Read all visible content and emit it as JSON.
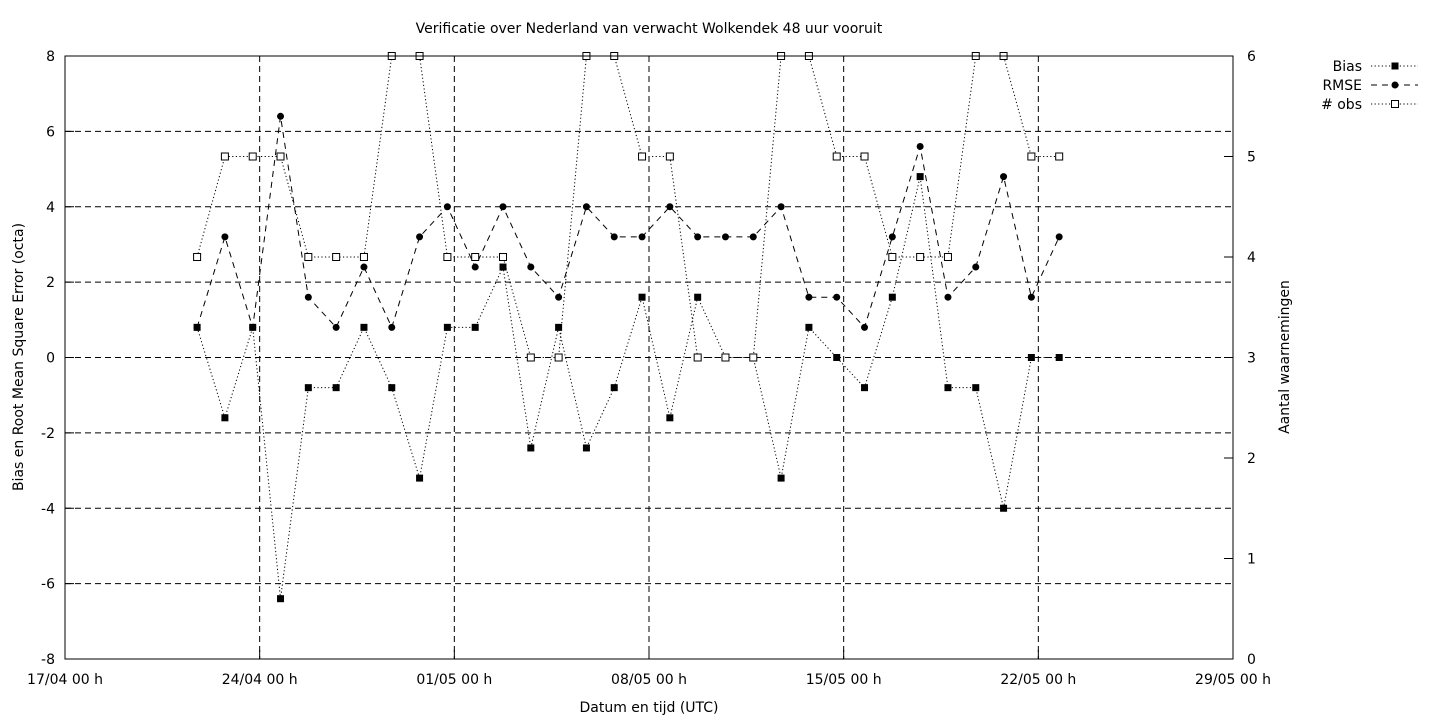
{
  "chart_data": {
    "type": "line",
    "title": "Verificatie over Nederland van verwacht Wolkendek 48 uur vooruit",
    "xlabel": "Datum en tijd (UTC)",
    "ylabel": "Bias en Root Mean Square Error (octa)",
    "y2label": "Aantal waarnemingen",
    "xlim": [
      0,
      42
    ],
    "ylim": [
      -8,
      8
    ],
    "y2lim": [
      0,
      6
    ],
    "xticks": [
      {
        "x": 0,
        "label": "17/04 00 h"
      },
      {
        "x": 7,
        "label": "24/04 00 h"
      },
      {
        "x": 14,
        "label": "01/05 00 h"
      },
      {
        "x": 21,
        "label": "08/05 00 h"
      },
      {
        "x": 28,
        "label": "15/05 00 h"
      },
      {
        "x": 35,
        "label": "22/05 00 h"
      },
      {
        "x": 42,
        "label": "29/05 00 h"
      }
    ],
    "yticks": [
      "-8",
      "-6",
      "-4",
      "-2",
      "0",
      "2",
      "4",
      "6",
      "8"
    ],
    "y2ticks": [
      "0",
      "1",
      "2",
      "3",
      "4",
      "5",
      "6"
    ],
    "grid": true,
    "legend_position": "outside-top-right",
    "x_days": [
      4.75,
      5.75,
      6.75,
      7.75,
      8.75,
      9.75,
      10.75,
      11.75,
      12.75,
      13.75,
      14.75,
      15.75,
      16.75,
      17.75,
      18.75,
      19.75,
      20.75,
      21.75,
      22.75,
      23.75,
      24.75,
      25.75,
      26.75,
      27.75,
      28.75,
      29.75,
      30.75,
      31.75,
      32.75,
      33.75,
      34.75,
      35.75
    ],
    "series": [
      {
        "name": "Bias",
        "axis": "y1",
        "marker": "filled-square",
        "dash": "dotted",
        "values": [
          0.8,
          -1.6,
          0.8,
          -6.4,
          -0.8,
          -0.8,
          0.8,
          -0.8,
          -3.2,
          0.8,
          0.8,
          2.4,
          -2.4,
          0.8,
          -2.4,
          -0.8,
          1.6,
          -1.6,
          1.6,
          0,
          0,
          -3.2,
          0.8,
          0,
          -0.8,
          1.6,
          4.8,
          -0.8,
          -0.8,
          -4,
          0,
          0
        ]
      },
      {
        "name": "RMSE",
        "axis": "y1",
        "marker": "filled-circle",
        "dash": "dashed",
        "values": [
          0.8,
          3.2,
          0.8,
          6.4,
          1.6,
          0.8,
          2.4,
          0.8,
          3.2,
          4,
          2.4,
          4,
          2.4,
          1.6,
          4,
          3.2,
          3.2,
          4,
          3.2,
          3.2,
          3.2,
          4,
          1.6,
          1.6,
          0.8,
          3.2,
          5.6,
          1.6,
          2.4,
          4.8,
          1.6,
          3.2
        ]
      },
      {
        "name": "# obs",
        "axis": "y2",
        "marker": "open-square",
        "dash": "dotted",
        "values": [
          4,
          5,
          5,
          5,
          4,
          4,
          4,
          6,
          6,
          4,
          4,
          4,
          3,
          3,
          6,
          6,
          5,
          5,
          3,
          3,
          3,
          6,
          6,
          5,
          5,
          4,
          4,
          4,
          6,
          6,
          5,
          5
        ]
      }
    ]
  }
}
